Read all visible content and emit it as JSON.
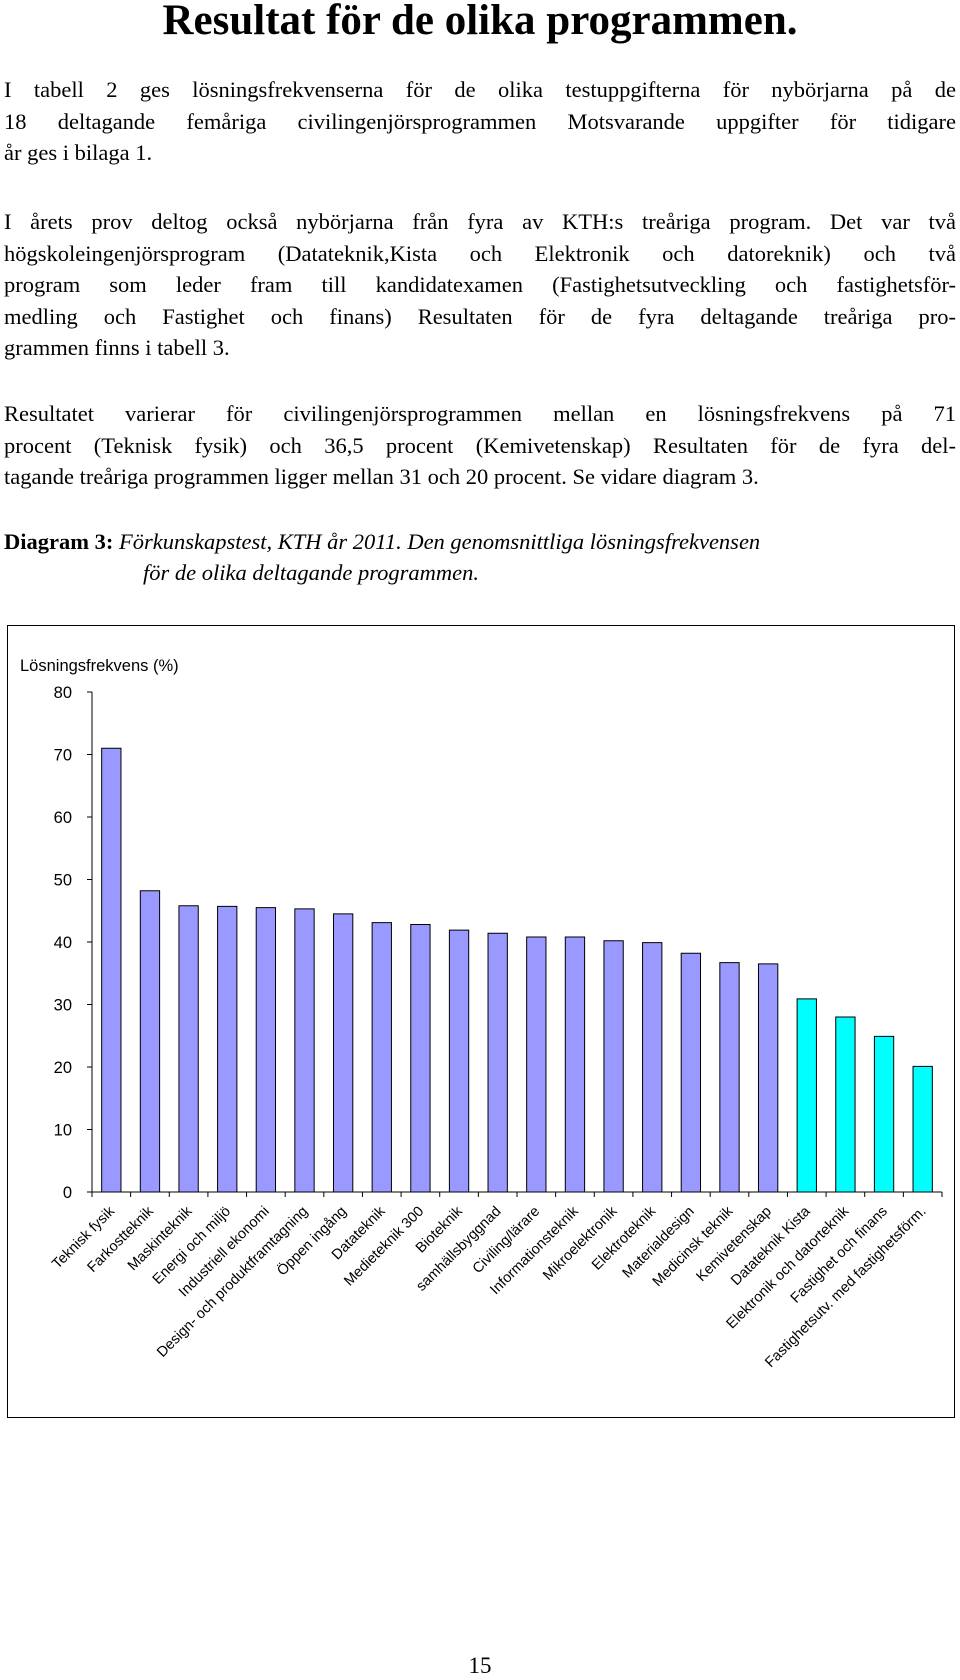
{
  "title": "Resultat för de olika programmen.",
  "paragraphs": [
    [
      "I tabell 2 ges lösningsfrekvenserna för de olika testuppgifterna för nybörjarna på de",
      "18 deltagande femåriga civilingenjörsprogrammen Motsvarande uppgifter för tidigare",
      "år ges i bilaga 1."
    ],
    [
      "I årets prov deltog också nybörjarna från fyra av KTH:s treåriga program. Det var två",
      "högskoleingenjörsprogram (Datateknik,Kista och Elektronik och datoreknik) och två",
      "program som leder fram till kandidatexamen (Fastighetsutveckling och fastighetsför-",
      "medling och Fastighet och finans) Resultaten för de fyra deltagande treåriga pro-",
      "grammen finns i tabell 3."
    ],
    [
      "Resultatet varierar för civilingenjörsprogrammen mellan en lösningsfrekvens på 71",
      "procent (Teknisk fysik) och 36,5 procent (Kemivetenskap) Resultaten för de fyra del-",
      "tagande treåriga programmen ligger mellan 31 och 20 procent. Se vidare diagram 3."
    ]
  ],
  "caption": {
    "label": "Diagram 3:",
    "line1": "Förkunskapstest, KTH år 2011. Den genomsnittliga lösningsfrekvensen",
    "line2": "för de olika deltagande programmen."
  },
  "chart_data": {
    "type": "bar",
    "ylabel": "Lösningsfrekvens (%)",
    "ylim": [
      0,
      80
    ],
    "yticks": [
      0,
      10,
      20,
      30,
      40,
      50,
      60,
      70,
      80
    ],
    "grid": false,
    "categories": [
      "Teknisk fysik",
      "Farkostteknik",
      "Maskinteknik",
      "Energi och miljö",
      "Industriell ekonomi",
      "Design- och produktframtagning",
      "Öppen ingång",
      "Datateknik",
      "Medieteknik 300",
      "Bioteknik",
      "samhällsbyggnad",
      "Civiling/lärare",
      "Informationsteknik",
      "Mikroelektronik",
      "Elektroteknik",
      "Materialdesign",
      "Medicinsk teknik",
      "Kemivetenskap",
      "Datateknik Kista",
      "Elektronik och datorteknik",
      "Fastighet och finans",
      "Fastighetsutv. med fastighetsförm."
    ],
    "values": [
      71,
      48.2,
      45.8,
      45.7,
      45.5,
      45.3,
      44.5,
      43.1,
      42.8,
      41.9,
      41.4,
      40.8,
      40.8,
      40.2,
      39.9,
      38.2,
      36.7,
      36.5,
      30.9,
      28,
      24.9,
      20.1
    ],
    "groups": [
      "civ",
      "civ",
      "civ",
      "civ",
      "civ",
      "civ",
      "civ",
      "civ",
      "civ",
      "civ",
      "civ",
      "civ",
      "civ",
      "civ",
      "civ",
      "civ",
      "civ",
      "civ",
      "tre",
      "tre",
      "tre",
      "tre"
    ],
    "colors": {
      "civ": "#9999ff",
      "tre": "#00ffff",
      "outline": "#000000"
    }
  },
  "page_number": "15"
}
